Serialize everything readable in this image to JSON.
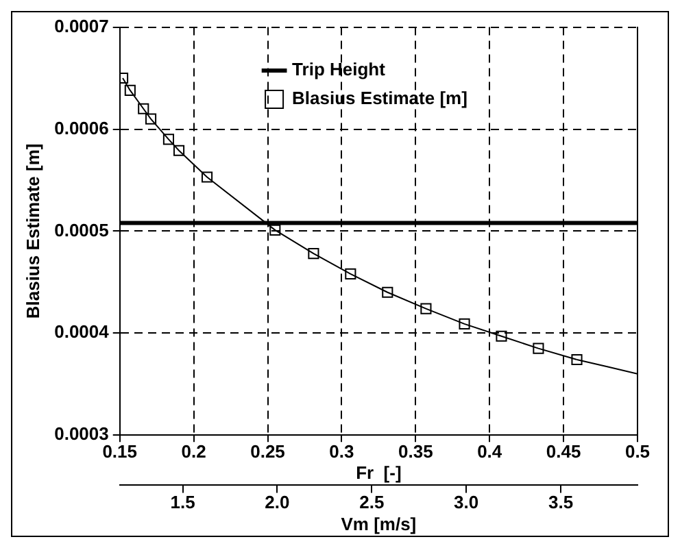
{
  "chart_data": {
    "type": "line",
    "xlabel": "Fr  [-]",
    "ylabel": "Blasius Estimate [m]",
    "x2label": "Vm [m/s]",
    "xlim": [
      0.15,
      0.5
    ],
    "xticks": [
      0.15,
      0.2,
      0.25,
      0.3,
      0.35,
      0.4,
      0.45,
      0.5
    ],
    "x2lim": [
      1.167,
      3.906
    ],
    "x2ticks": [
      {
        "value": 1.5,
        "label": "1.5"
      },
      {
        "value": 2.0,
        "label": "2.0"
      },
      {
        "value": 2.5,
        "label": "2.5"
      },
      {
        "value": 3.0,
        "label": "3.0"
      },
      {
        "value": 3.5,
        "label": "3.5"
      }
    ],
    "ylim": [
      0.0003,
      0.0007
    ],
    "yticks": [
      0.0003,
      0.0004,
      0.0005,
      0.0006,
      0.0007
    ],
    "grid": true,
    "legend": "top",
    "ref_lines": [
      {
        "axis": "y",
        "value": 0.000508,
        "label": "Trip Height",
        "color": "#000000"
      }
    ],
    "series": [
      {
        "name": "Blasius Estimate [m]",
        "color": "#000000",
        "marker": "square",
        "x": [
          0.152,
          0.157,
          0.166,
          0.171,
          0.183,
          0.19,
          0.209,
          0.255,
          0.281,
          0.306,
          0.331,
          0.357,
          0.383,
          0.408,
          0.433,
          0.459
        ],
        "values": [
          0.00065,
          0.000638,
          0.00062,
          0.00061,
          0.00059,
          0.000579,
          0.000553,
          0.000501,
          0.000478,
          0.000458,
          0.00044,
          0.000424,
          0.000409,
          0.000397,
          0.000385,
          0.000374
        ]
      },
      {
        "color": "#000000",
        "marker": "none",
        "x": [
          0.459,
          0.48,
          0.5
        ],
        "values": [
          0.000374,
          0.000367,
          0.00036
        ]
      }
    ]
  }
}
